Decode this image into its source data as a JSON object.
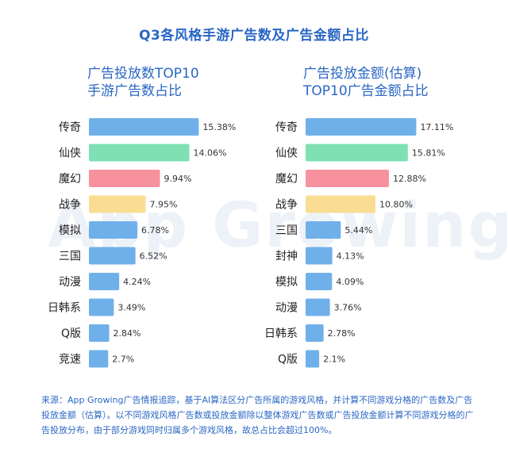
{
  "title": "Q3各风格手游广告数及广告金额占比",
  "watermark": "App Growing",
  "chart_data": [
    {
      "type": "bar",
      "orientation": "horizontal",
      "title_lines": [
        "广告投放数TOP10",
        "手游广告数占比"
      ],
      "categories": [
        "传奇",
        "仙侠",
        "魔幻",
        "战争",
        "模拟",
        "三国",
        "动漫",
        "日韩系",
        "Q版",
        "竞速"
      ],
      "values": [
        15.38,
        14.06,
        9.94,
        7.95,
        6.78,
        6.52,
        4.24,
        3.49,
        2.84,
        2.7
      ],
      "labels": [
        "15.38%",
        "14.06%",
        "9.94%",
        "7.95%",
        "6.78%",
        "6.52%",
        "4.24%",
        "3.49%",
        "2.84%",
        "2.7%"
      ],
      "colors": [
        "#6fb0ea",
        "#7fe0b4",
        "#f7919e",
        "#f8dd93",
        "#6fb0ea",
        "#6fb0ea",
        "#6fb0ea",
        "#6fb0ea",
        "#6fb0ea",
        "#6fb0ea"
      ]
    },
    {
      "type": "bar",
      "orientation": "horizontal",
      "title_lines": [
        "广告投放金额(估算)",
        "TOP10广告金额占比"
      ],
      "categories": [
        "传奇",
        "仙侠",
        "魔幻",
        "战争",
        "三国",
        "封神",
        "模拟",
        "动漫",
        "日韩系",
        "Q版"
      ],
      "values": [
        17.11,
        15.81,
        12.88,
        10.8,
        5.44,
        4.13,
        4.09,
        3.76,
        2.78,
        2.1
      ],
      "labels": [
        "17.11%",
        "15.81%",
        "12.88%",
        "10.80%",
        "5.44%",
        "4.13%",
        "4.09%",
        "3.76%",
        "2.78%",
        "2.1%"
      ],
      "colors": [
        "#6fb0ea",
        "#7fe0b4",
        "#f7919e",
        "#f8dd93",
        "#6fb0ea",
        "#6fb0ea",
        "#6fb0ea",
        "#6fb0ea",
        "#6fb0ea",
        "#6fb0ea"
      ]
    }
  ],
  "source": "来源：App Growing广告情报追踪，基于AI算法区分广告所属的游戏风格，并计算不同游戏分格的广告数及广告投放金额（估算）。以不同游戏风格广告数或投放金额除以整体游戏广告数或广告投放金额计算不同游戏分格的广告投放分布，由于部分游戏同时归属多个游戏风格，故总占比会超过100%。"
}
